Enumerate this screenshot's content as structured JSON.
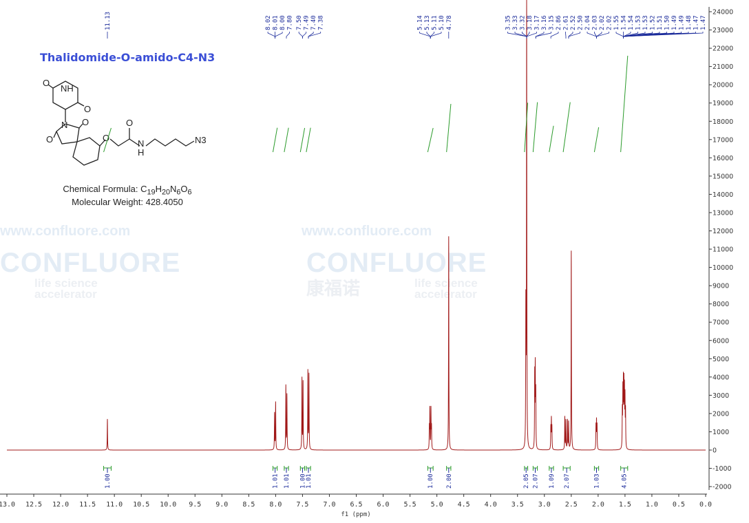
{
  "compound": {
    "name": "Thalidomide-O-amido-C4-N3",
    "formula_label": "Chemical Formula:",
    "formula": "C19H20N6O6",
    "mw_label": "Molecular Weight:",
    "mw": "428.4050",
    "structure_atoms": [
      "O",
      "NH",
      "O",
      "N",
      "O",
      "O",
      "O",
      "O",
      "N",
      "H",
      "N3"
    ]
  },
  "watermark": {
    "brand": "CONFLUORE",
    "url": "www.confluore.com",
    "cn": "康福诺",
    "tagline1": "life science",
    "tagline2": "accelerator"
  },
  "chart_data": {
    "type": "line",
    "title": "",
    "xlabel": "f1 (ppm)",
    "ylabel": "",
    "xlim": [
      13.0,
      0.0
    ],
    "ylim": [
      -2000,
      24000
    ],
    "x_ticks": [
      "13.0",
      "12.5",
      "12.0",
      "11.5",
      "11.0",
      "10.5",
      "10.0",
      "9.5",
      "9.0",
      "8.5",
      "8.0",
      "7.5",
      "7.0",
      "6.5",
      "6.0",
      "5.5",
      "5.0",
      "4.5",
      "4.0",
      "3.5",
      "3.0",
      "2.5",
      "2.0",
      "1.5",
      "1.0",
      "0.5",
      "0.0"
    ],
    "y_ticks": [
      "-2000",
      "-1000",
      "0",
      "1000",
      "2000",
      "3000",
      "4000",
      "5000",
      "6000",
      "7000",
      "8000",
      "9000",
      "10000",
      "11000",
      "12000",
      "13000",
      "14000",
      "15000",
      "16000",
      "17000",
      "18000",
      "19000",
      "20000",
      "21000",
      "22000",
      "23000",
      "24000"
    ],
    "grid": false,
    "colors": {
      "spectrum": "#a01818",
      "integral": "#2a9a2a",
      "labels": "#1a2a9a",
      "axis": "#333333"
    },
    "peaks": [
      {
        "ppm": 11.13,
        "intensity": 1700
      },
      {
        "ppm": 8.02,
        "intensity": 2000
      },
      {
        "ppm": 8.0,
        "intensity": 2600
      },
      {
        "ppm": 7.81,
        "intensity": 3500
      },
      {
        "ppm": 7.79,
        "intensity": 3000
      },
      {
        "ppm": 7.51,
        "intensity": 3900
      },
      {
        "ppm": 7.49,
        "intensity": 3700
      },
      {
        "ppm": 7.4,
        "intensity": 4300
      },
      {
        "ppm": 7.38,
        "intensity": 4100
      },
      {
        "ppm": 5.14,
        "intensity": 1200
      },
      {
        "ppm": 5.13,
        "intensity": 2200
      },
      {
        "ppm": 5.11,
        "intensity": 2200
      },
      {
        "ppm": 5.1,
        "intensity": 1200
      },
      {
        "ppm": 4.78,
        "intensity": 11700
      },
      {
        "ppm": 3.345,
        "intensity": 7500
      },
      {
        "ppm": 3.33,
        "intensity": 25000
      },
      {
        "ppm": 3.18,
        "intensity": 4000
      },
      {
        "ppm": 3.17,
        "intensity": 4300
      },
      {
        "ppm": 3.16,
        "intensity": 3000
      },
      {
        "ppm": 2.88,
        "intensity": 1200
      },
      {
        "ppm": 2.87,
        "intensity": 1600
      },
      {
        "ppm": 2.86,
        "intensity": 1200
      },
      {
        "ppm": 2.62,
        "intensity": 1800
      },
      {
        "ppm": 2.6,
        "intensity": 1600
      },
      {
        "ppm": 2.57,
        "intensity": 1600
      },
      {
        "ppm": 2.55,
        "intensity": 1500
      },
      {
        "ppm": 2.5,
        "intensity": 10900
      },
      {
        "ppm": 2.04,
        "intensity": 1300
      },
      {
        "ppm": 2.03,
        "intensity": 1500
      },
      {
        "ppm": 2.02,
        "intensity": 1300
      },
      {
        "ppm": 1.55,
        "intensity": 2000
      },
      {
        "ppm": 1.54,
        "intensity": 3000
      },
      {
        "ppm": 1.53,
        "intensity": 3400
      },
      {
        "ppm": 1.52,
        "intensity": 3300
      },
      {
        "ppm": 1.51,
        "intensity": 3000
      },
      {
        "ppm": 1.5,
        "intensity": 2600
      },
      {
        "ppm": 1.49,
        "intensity": 2000
      }
    ],
    "peak_labels": [
      {
        "group": [
          11.13
        ],
        "labels": [
          "11.13"
        ]
      },
      {
        "group": [
          8.01
        ],
        "labels": [
          "8.02",
          "8.01",
          "8.00"
        ]
      },
      {
        "group": [
          7.8
        ],
        "labels": [
          "7.80"
        ]
      },
      {
        "group": [
          7.5
        ],
        "labels": [
          "7.50",
          "7.49"
        ]
      },
      {
        "group": [
          7.39
        ],
        "labels": [
          "7.40",
          "7.38"
        ]
      },
      {
        "group": [
          5.12
        ],
        "labels": [
          "5.14",
          "5.13",
          "5.11",
          "5.10"
        ]
      },
      {
        "group": [
          4.78
        ],
        "labels": [
          "4.78"
        ]
      },
      {
        "group": [
          3.33
        ],
        "labels": [
          "3.35",
          "3.33",
          "3.32",
          "3.18",
          "3.17"
        ]
      },
      {
        "group": [
          3.16
        ],
        "labels": [
          "3.16",
          "3.15"
        ]
      },
      {
        "group": [
          2.88
        ],
        "labels": [
          "2.86"
        ]
      },
      {
        "group": [
          2.6
        ],
        "labels": [
          "2.61"
        ]
      },
      {
        "group": [
          2.55
        ],
        "labels": [
          "2.52",
          "2.50"
        ]
      },
      {
        "group": [
          2.03
        ],
        "labels": [
          "2.04",
          "2.03",
          "2.02",
          "2.02"
        ]
      },
      {
        "group": [
          1.53
        ],
        "labels": [
          "1.55",
          "1.54",
          "1.54",
          "1.53",
          "1.53",
          "1.52",
          "1.51",
          "1.50",
          "1.49",
          "1.49",
          "1.48",
          "1.47",
          "1.47"
        ]
      }
    ],
    "integrals": [
      {
        "from": 11.2,
        "to": 11.06,
        "value": "1.00"
      },
      {
        "from": 8.05,
        "to": 7.97,
        "value": "1.01"
      },
      {
        "from": 7.84,
        "to": 7.76,
        "value": "1.01"
      },
      {
        "from": 7.54,
        "to": 7.46,
        "value": "1.00"
      },
      {
        "from": 7.43,
        "to": 7.35,
        "value": "1.01"
      },
      {
        "from": 5.17,
        "to": 5.07,
        "value": "1.00"
      },
      {
        "from": 4.82,
        "to": 4.74,
        "value": "2.00"
      },
      {
        "from": 3.37,
        "to": 3.31,
        "value": "2.05"
      },
      {
        "from": 3.21,
        "to": 3.13,
        "value": "2.07"
      },
      {
        "from": 2.91,
        "to": 2.83,
        "value": "1.09"
      },
      {
        "from": 2.65,
        "to": 2.52,
        "value": "2.07"
      },
      {
        "from": 2.07,
        "to": 1.99,
        "value": "1.03"
      },
      {
        "from": 1.58,
        "to": 1.45,
        "value": "4.05"
      }
    ]
  }
}
